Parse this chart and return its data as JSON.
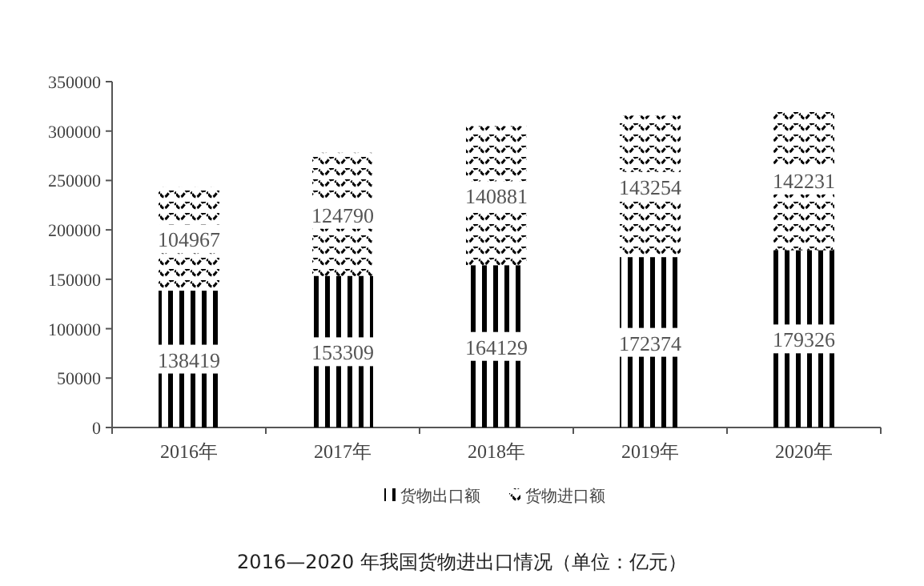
{
  "chart_data": {
    "type": "bar",
    "stacked": true,
    "title": "2016—2020 年我国货物进出口情况（单位：亿元）",
    "categories": [
      "2016年",
      "2017年",
      "2018年",
      "2019年",
      "2020年"
    ],
    "series": [
      {
        "name": "货物出口额",
        "color": "#000000",
        "values": [
          138419,
          153309,
          164129,
          172374,
          179326
        ]
      },
      {
        "name": "货物进口额",
        "color": "#000000",
        "values": [
          104967,
          124790,
          140881,
          143254,
          142231
        ]
      }
    ],
    "ylim": [
      0,
      350000
    ],
    "yticks": [
      0,
      50000,
      100000,
      150000,
      200000,
      250000,
      300000,
      350000
    ],
    "data_labels": true,
    "legend": "bottom",
    "grid": false
  }
}
